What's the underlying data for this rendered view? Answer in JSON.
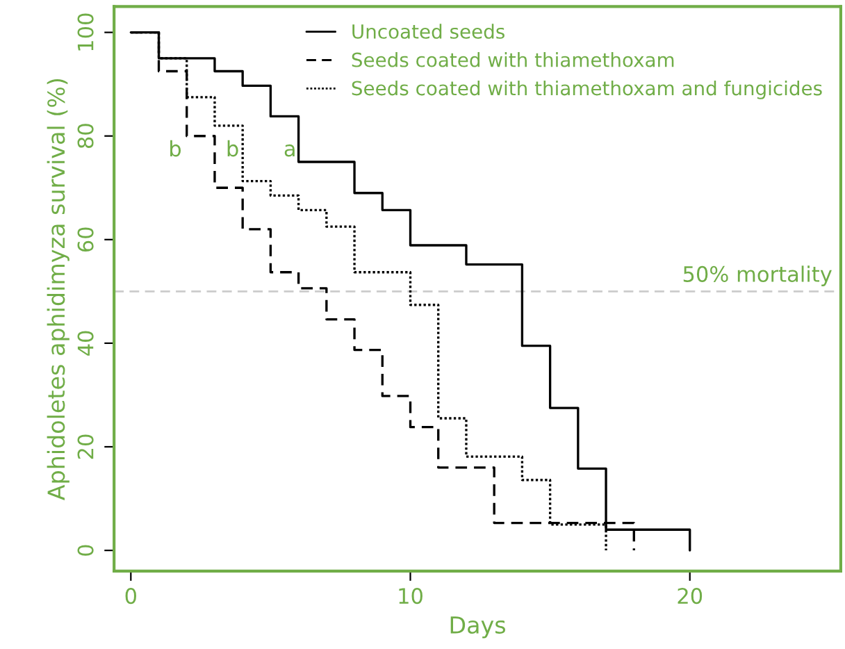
{
  "chart_data": {
    "type": "step",
    "xlabel": "Days",
    "ylabel": "Aphidoletes aphidimyza survival (%)",
    "series": [
      {
        "name": "Uncoated seeds",
        "color": "#000000",
        "line_style": "solid",
        "x": [
          0,
          1,
          3,
          4,
          5,
          6,
          8,
          9,
          10,
          12,
          14,
          15,
          16,
          17,
          20
        ],
        "values": [
          100,
          95,
          92.5,
          89.7,
          83.8,
          75,
          69,
          65.7,
          58.9,
          55.2,
          39.5,
          27.5,
          15.8,
          4,
          0
        ]
      },
      {
        "name": "Seeds coated with thiamethoxam",
        "color": "#000000",
        "line_style": "dashed",
        "x": [
          0,
          1,
          2,
          3,
          4,
          5,
          6,
          7,
          8,
          9,
          10,
          11,
          13,
          18
        ],
        "values": [
          100,
          92.5,
          80,
          70,
          62,
          53.7,
          50.6,
          44.6,
          38.7,
          29.8,
          23.8,
          16,
          5.3,
          0
        ]
      },
      {
        "name": "Seeds coated with thiamethoxam and fungicides",
        "color": "#000000",
        "line_style": "dotted",
        "x": [
          0,
          1,
          2,
          3,
          4,
          5,
          6,
          7,
          8,
          10,
          11,
          12,
          14,
          15,
          17
        ],
        "values": [
          100,
          95,
          87.5,
          82,
          71.3,
          68.5,
          65.7,
          62.5,
          53.7,
          47.4,
          25.5,
          18.1,
          13.6,
          5,
          0
        ]
      }
    ],
    "xlim": [
      -0.6,
      25.4
    ],
    "ylim": [
      -4,
      105
    ],
    "xticks": [
      0,
      10,
      20
    ],
    "yticks": [
      0,
      20,
      40,
      60,
      80,
      100
    ],
    "ref_lines": [
      {
        "axis": "y",
        "value": 50,
        "label": "50% mortality",
        "color": "#cccccc",
        "line_style": "dashed"
      }
    ],
    "annotations": [
      "b",
      "b",
      "a"
    ],
    "legend": "top",
    "grid": false
  }
}
